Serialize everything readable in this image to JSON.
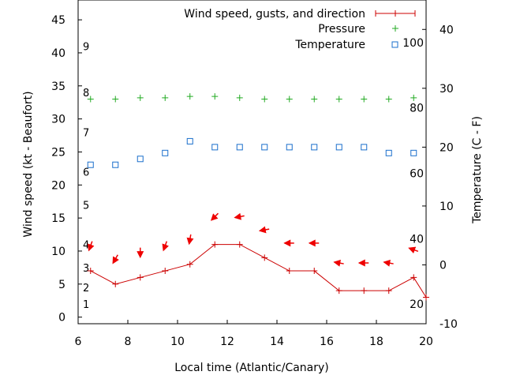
{
  "chart_data": {
    "type": "line",
    "title": "",
    "xlabel": "Local time (Atlantic/Canary)",
    "ylabel": "Wind speed (kt - Beaufort)",
    "y2label": "Temperature (C - F)",
    "xlim": [
      6,
      20
    ],
    "ylim": [
      -1,
      48
    ],
    "y2lim": [
      -10,
      45
    ],
    "xticks": [
      "6",
      "8",
      "10",
      "12",
      "14",
      "16",
      "18",
      "20"
    ],
    "yticks": [
      "0",
      "5",
      "10",
      "15",
      "20",
      "25",
      "30",
      "35",
      "40",
      "45"
    ],
    "y2ticks": [
      "-10",
      "0",
      "10",
      "20",
      "30",
      "40"
    ],
    "fahrenheit_labels": [
      {
        "c": -6.67,
        "label": "20"
      },
      {
        "c": 4.44,
        "label": "40"
      },
      {
        "c": 15.56,
        "label": "60"
      },
      {
        "c": 26.67,
        "label": "80"
      },
      {
        "c": 37.78,
        "label": "100"
      }
    ],
    "beaufort_labels": [
      {
        "kt": 2,
        "label": "1"
      },
      {
        "kt": 4.5,
        "label": "2"
      },
      {
        "kt": 7.5,
        "label": "3"
      },
      {
        "kt": 11,
        "label": "4"
      },
      {
        "kt": 17,
        "label": "5"
      },
      {
        "kt": 22,
        "label": "6"
      },
      {
        "kt": 28,
        "label": "7"
      },
      {
        "kt": 34,
        "label": "8"
      },
      {
        "kt": 41,
        "label": "9"
      }
    ],
    "legend": {
      "position": "top-right"
    },
    "grid": false,
    "colors": {
      "wind": "#cc0000",
      "pressure": "#22aa22",
      "temperature": "#1a6fcc",
      "arrows": "#ee0000"
    },
    "series": [
      {
        "name": "Wind speed, gusts, and direction",
        "x": [
          6.5,
          7.5,
          8.5,
          9.5,
          10.5,
          11.5,
          12.5,
          13.5,
          14.5,
          15.5,
          16.5,
          17.5,
          18.5,
          19.5,
          20
        ],
        "y": [
          7,
          5,
          6,
          7,
          8,
          11,
          11,
          9,
          7,
          7,
          4,
          4,
          4,
          6,
          3
        ]
      },
      {
        "name": "Pressure",
        "x": [
          6.5,
          7.5,
          8.5,
          9.5,
          10.5,
          11.5,
          12.5,
          13.5,
          14.5,
          15.5,
          16.5,
          17.5,
          18.5,
          19.5
        ],
        "y": [
          33,
          33,
          33.2,
          33.2,
          33.4,
          33.4,
          33.2,
          33,
          33,
          33,
          33,
          33,
          33,
          33.2
        ]
      },
      {
        "name": "Temperature",
        "x": [
          6.5,
          7.5,
          8.5,
          9.5,
          10.5,
          11.5,
          12.5,
          13.5,
          14.5,
          15.5,
          16.5,
          17.5,
          18.5,
          19.5
        ],
        "y": [
          17,
          17,
          18,
          19,
          21,
          20,
          20,
          20,
          20,
          20,
          20,
          20,
          19,
          19
        ]
      }
    ],
    "wind_direction": {
      "x": [
        6.5,
        7.5,
        8.5,
        9.5,
        10.5,
        11.5,
        12.5,
        13.5,
        14.5,
        15.5,
        16.5,
        17.5,
        18.5,
        19.5
      ],
      "y": [
        10.8,
        8.8,
        9.8,
        10.8,
        11.8,
        15.2,
        15.2,
        13.2,
        11.2,
        11.2,
        8.2,
        8.2,
        8.2,
        10.2
      ],
      "dir_deg": [
        20,
        30,
        0,
        20,
        10,
        45,
        80,
        80,
        90,
        90,
        100,
        90,
        100,
        110
      ]
    }
  }
}
